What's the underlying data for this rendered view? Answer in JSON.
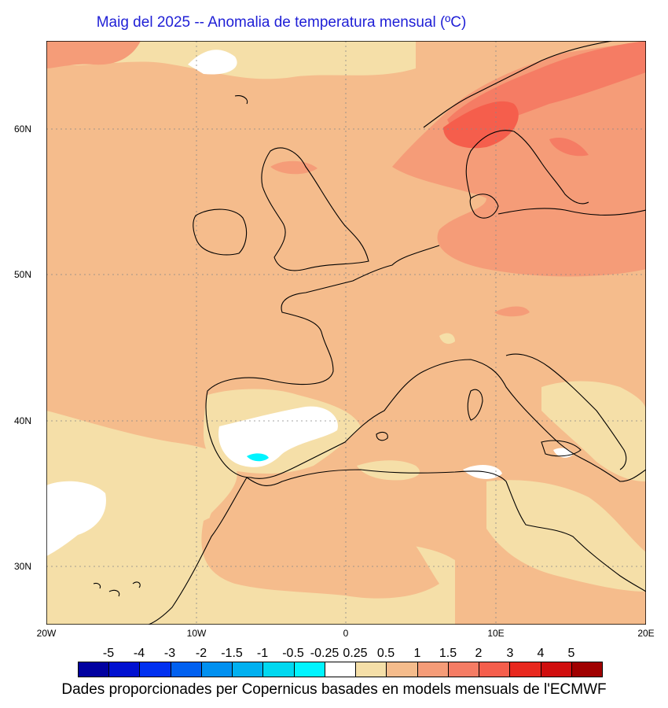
{
  "title": "Maig del 2025 -- Anomalia de temperatura mensual (ºC)",
  "credit": "Dades proporcionades per Copernicus basades en models mensuals de l'ECMWF",
  "lat_labels": [
    "60N",
    "50N",
    "40N",
    "30N"
  ],
  "lon_labels": [
    "20W",
    "10W",
    "0",
    "10E",
    "20E"
  ],
  "legend": {
    "labels": [
      "-5",
      "-4",
      "-3",
      "-2",
      "-1.5",
      "-1",
      "-0.5",
      "-0.25",
      "0.25",
      "0.5",
      "1",
      "1.5",
      "2",
      "3",
      "4",
      "5"
    ],
    "colors": [
      "#0000a0",
      "#0010d0",
      "#0030f0",
      "#0060f0",
      "#0090f0",
      "#00b0f0",
      "#00d8f0",
      "#00f4ff",
      "#ffffff",
      "#f5dfa8",
      "#f5bc8c",
      "#f59c78",
      "#f57c64",
      "#f55e4c",
      "#e8281e",
      "#d00e0e",
      "#a00000"
    ]
  },
  "map": {
    "region": "Europe / North Africa",
    "lat_range": [
      26,
      66
    ],
    "lon_range": [
      -20,
      20
    ],
    "colors": {
      "background_anomaly": "#f5bc8c",
      "light_anomaly": "#f5dfa8",
      "neutral": "#ffffff",
      "warm": "#f59c78",
      "warmer": "#f57c64",
      "hot": "#f55e4c",
      "cold_spot": "#00f4ff"
    }
  }
}
